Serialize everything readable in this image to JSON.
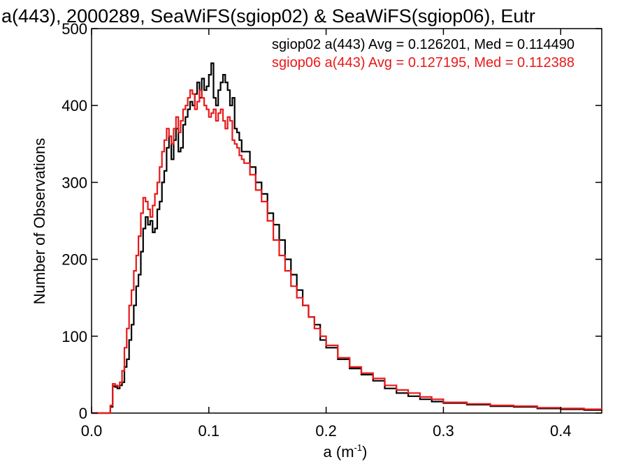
{
  "chart_data": {
    "type": "line",
    "title": "a(443), 2000289, SeaWiFS(sgiop02) & SeaWiFS(sgiop06), Eutr",
    "xlabel_base": "a (m",
    "xlabel_sup": "-1",
    "xlabel_close": ")",
    "ylabel": "Number of Observations",
    "xlim": [
      0.0,
      0.435
    ],
    "ylim": [
      0,
      500
    ],
    "xticks": [
      "0.0",
      "0.1",
      "0.2",
      "0.3",
      "0.4"
    ],
    "xtick_values": [
      0.0,
      0.1,
      0.2,
      0.3,
      0.4
    ],
    "yticks": [
      "0",
      "100",
      "200",
      "300",
      "400",
      "500"
    ],
    "ytick_values": [
      0,
      100,
      200,
      300,
      400,
      500
    ],
    "legend": [
      "sgiop02 a(443) Avg = 0.126201, Med = 0.114490",
      "sgiop06 a(443) Avg = 0.127195, Med = 0.112388"
    ],
    "series": [
      {
        "name": "sgiop02",
        "color": "#000000",
        "x": [
          0.0,
          0.01,
          0.016,
          0.018,
          0.02,
          0.022,
          0.024,
          0.026,
          0.028,
          0.03,
          0.032,
          0.034,
          0.036,
          0.038,
          0.04,
          0.042,
          0.044,
          0.046,
          0.048,
          0.05,
          0.052,
          0.054,
          0.056,
          0.058,
          0.06,
          0.062,
          0.064,
          0.066,
          0.068,
          0.07,
          0.072,
          0.074,
          0.076,
          0.078,
          0.08,
          0.082,
          0.084,
          0.086,
          0.088,
          0.09,
          0.092,
          0.094,
          0.096,
          0.098,
          0.1,
          0.102,
          0.104,
          0.106,
          0.108,
          0.11,
          0.112,
          0.114,
          0.116,
          0.118,
          0.12,
          0.122,
          0.124,
          0.126,
          0.128,
          0.13,
          0.135,
          0.14,
          0.145,
          0.15,
          0.155,
          0.16,
          0.165,
          0.17,
          0.175,
          0.18,
          0.185,
          0.19,
          0.195,
          0.2,
          0.21,
          0.22,
          0.23,
          0.24,
          0.25,
          0.26,
          0.27,
          0.28,
          0.29,
          0.3,
          0.32,
          0.34,
          0.36,
          0.38,
          0.4,
          0.42,
          0.435
        ],
        "y": [
          0,
          0,
          8,
          35,
          34,
          32,
          36,
          40,
          60,
          70,
          95,
          115,
          140,
          165,
          180,
          210,
          240,
          255,
          245,
          250,
          235,
          240,
          265,
          275,
          300,
          315,
          345,
          360,
          330,
          355,
          370,
          340,
          345,
          375,
          385,
          395,
          405,
          400,
          415,
          430,
          410,
          435,
          420,
          425,
          440,
          455,
          410,
          400,
          420,
          430,
          440,
          430,
          420,
          400,
          410,
          370,
          365,
          355,
          340,
          340,
          320,
          300,
          285,
          260,
          245,
          225,
          200,
          180,
          160,
          140,
          125,
          115,
          95,
          85,
          70,
          58,
          50,
          42,
          32,
          26,
          22,
          18,
          15,
          13,
          11,
          9,
          8,
          6,
          5,
          4,
          3
        ]
      },
      {
        "name": "sgiop06",
        "color": "#e8191a",
        "x": [
          0.0,
          0.01,
          0.016,
          0.018,
          0.02,
          0.022,
          0.024,
          0.026,
          0.028,
          0.03,
          0.032,
          0.034,
          0.036,
          0.038,
          0.04,
          0.042,
          0.044,
          0.046,
          0.048,
          0.05,
          0.052,
          0.054,
          0.056,
          0.058,
          0.06,
          0.062,
          0.064,
          0.066,
          0.068,
          0.07,
          0.072,
          0.074,
          0.076,
          0.078,
          0.08,
          0.082,
          0.084,
          0.086,
          0.088,
          0.09,
          0.092,
          0.094,
          0.096,
          0.098,
          0.1,
          0.102,
          0.104,
          0.106,
          0.108,
          0.11,
          0.112,
          0.114,
          0.116,
          0.118,
          0.12,
          0.122,
          0.124,
          0.126,
          0.128,
          0.13,
          0.135,
          0.14,
          0.145,
          0.15,
          0.155,
          0.16,
          0.165,
          0.17,
          0.175,
          0.18,
          0.185,
          0.19,
          0.195,
          0.2,
          0.21,
          0.22,
          0.23,
          0.24,
          0.25,
          0.26,
          0.27,
          0.28,
          0.29,
          0.3,
          0.32,
          0.34,
          0.36,
          0.38,
          0.4,
          0.42,
          0.435
        ],
        "y": [
          0,
          0,
          10,
          38,
          36,
          35,
          40,
          55,
          85,
          110,
          140,
          160,
          185,
          205,
          230,
          260,
          280,
          275,
          265,
          255,
          270,
          285,
          300,
          320,
          340,
          355,
          370,
          360,
          350,
          370,
          385,
          365,
          380,
          395,
          400,
          410,
          420,
          415,
          395,
          405,
          420,
          410,
          400,
          395,
          385,
          390,
          395,
          380,
          390,
          395,
          380,
          370,
          385,
          380,
          355,
          350,
          345,
          335,
          330,
          325,
          310,
          290,
          275,
          250,
          225,
          205,
          185,
          165,
          150,
          140,
          125,
          110,
          100,
          88,
          72,
          60,
          52,
          45,
          36,
          30,
          26,
          21,
          18,
          14,
          12,
          10,
          9,
          7,
          6,
          5,
          4
        ]
      }
    ]
  }
}
